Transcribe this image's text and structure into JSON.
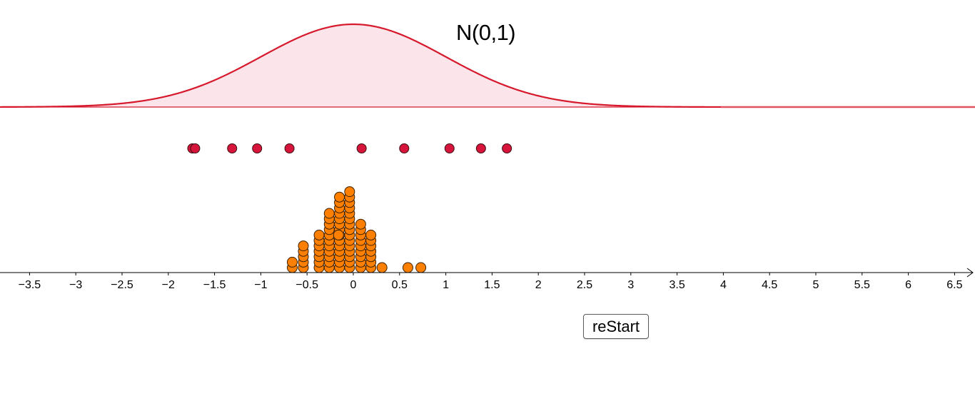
{
  "chart_data": {
    "type": "scatter",
    "title": "N(0,1)",
    "description": "Standard normal density curve with sampled points (red) and dot-plot of sample means (orange)",
    "xlim": [
      -3.85,
      6.75
    ],
    "x_ticks": [
      -3.5,
      -3,
      -2.5,
      -2,
      -1.5,
      -1,
      -0.5,
      0,
      0.5,
      1,
      1.5,
      2,
      2.5,
      3,
      3.5,
      4,
      4.5,
      5,
      5.5,
      6,
      6.5
    ],
    "x_tick_labels": [
      "−3.5",
      "−3",
      "−2.5",
      "−2",
      "−1.5",
      "−1",
      "−0.5",
      "0",
      "0.5",
      "1",
      "1.5",
      "2",
      "2.5",
      "3",
      "3.5",
      "4",
      "4.5",
      "5",
      "5.5",
      "6",
      "6.5"
    ],
    "grid": false,
    "density_curve": {
      "name": "N(0,1)",
      "mean": 0,
      "sd": 1,
      "color": "#d7192d",
      "fill": "#fbe4ea"
    },
    "sample_points": {
      "name": "sample",
      "color": "#d7143c",
      "x": [
        -1.74,
        -1.71,
        -1.31,
        -1.04,
        -0.69,
        0.09,
        0.55,
        1.04,
        1.38,
        1.66
      ]
    },
    "dot_plot": {
      "name": "sample means",
      "color": "#ff8000",
      "columns": [
        {
          "x": -0.66,
          "count": 2
        },
        {
          "x": -0.54,
          "count": 5
        },
        {
          "x": -0.37,
          "count": 7
        },
        {
          "x": -0.26,
          "count": 11
        },
        {
          "x": -0.15,
          "count": 14
        },
        {
          "x": -0.04,
          "count": 15
        },
        {
          "x": 0.08,
          "count": 9
        },
        {
          "x": 0.19,
          "count": 7
        },
        {
          "x": 0.31,
          "count": 1
        },
        {
          "x": 0.59,
          "count": 1
        },
        {
          "x": 0.73,
          "count": 1
        }
      ],
      "extra_points": [
        {
          "x": -0.16,
          "level": 6
        }
      ]
    }
  },
  "labels": {
    "distribution": "N(0,1)"
  },
  "controls": {
    "restart_label": "reStart"
  },
  "colors": {
    "curve": "#d7192d",
    "curve_fill": "#fbe4ea",
    "sample_dot": "#d7143c",
    "mean_dot": "#ff8000",
    "axis": "#000000"
  }
}
